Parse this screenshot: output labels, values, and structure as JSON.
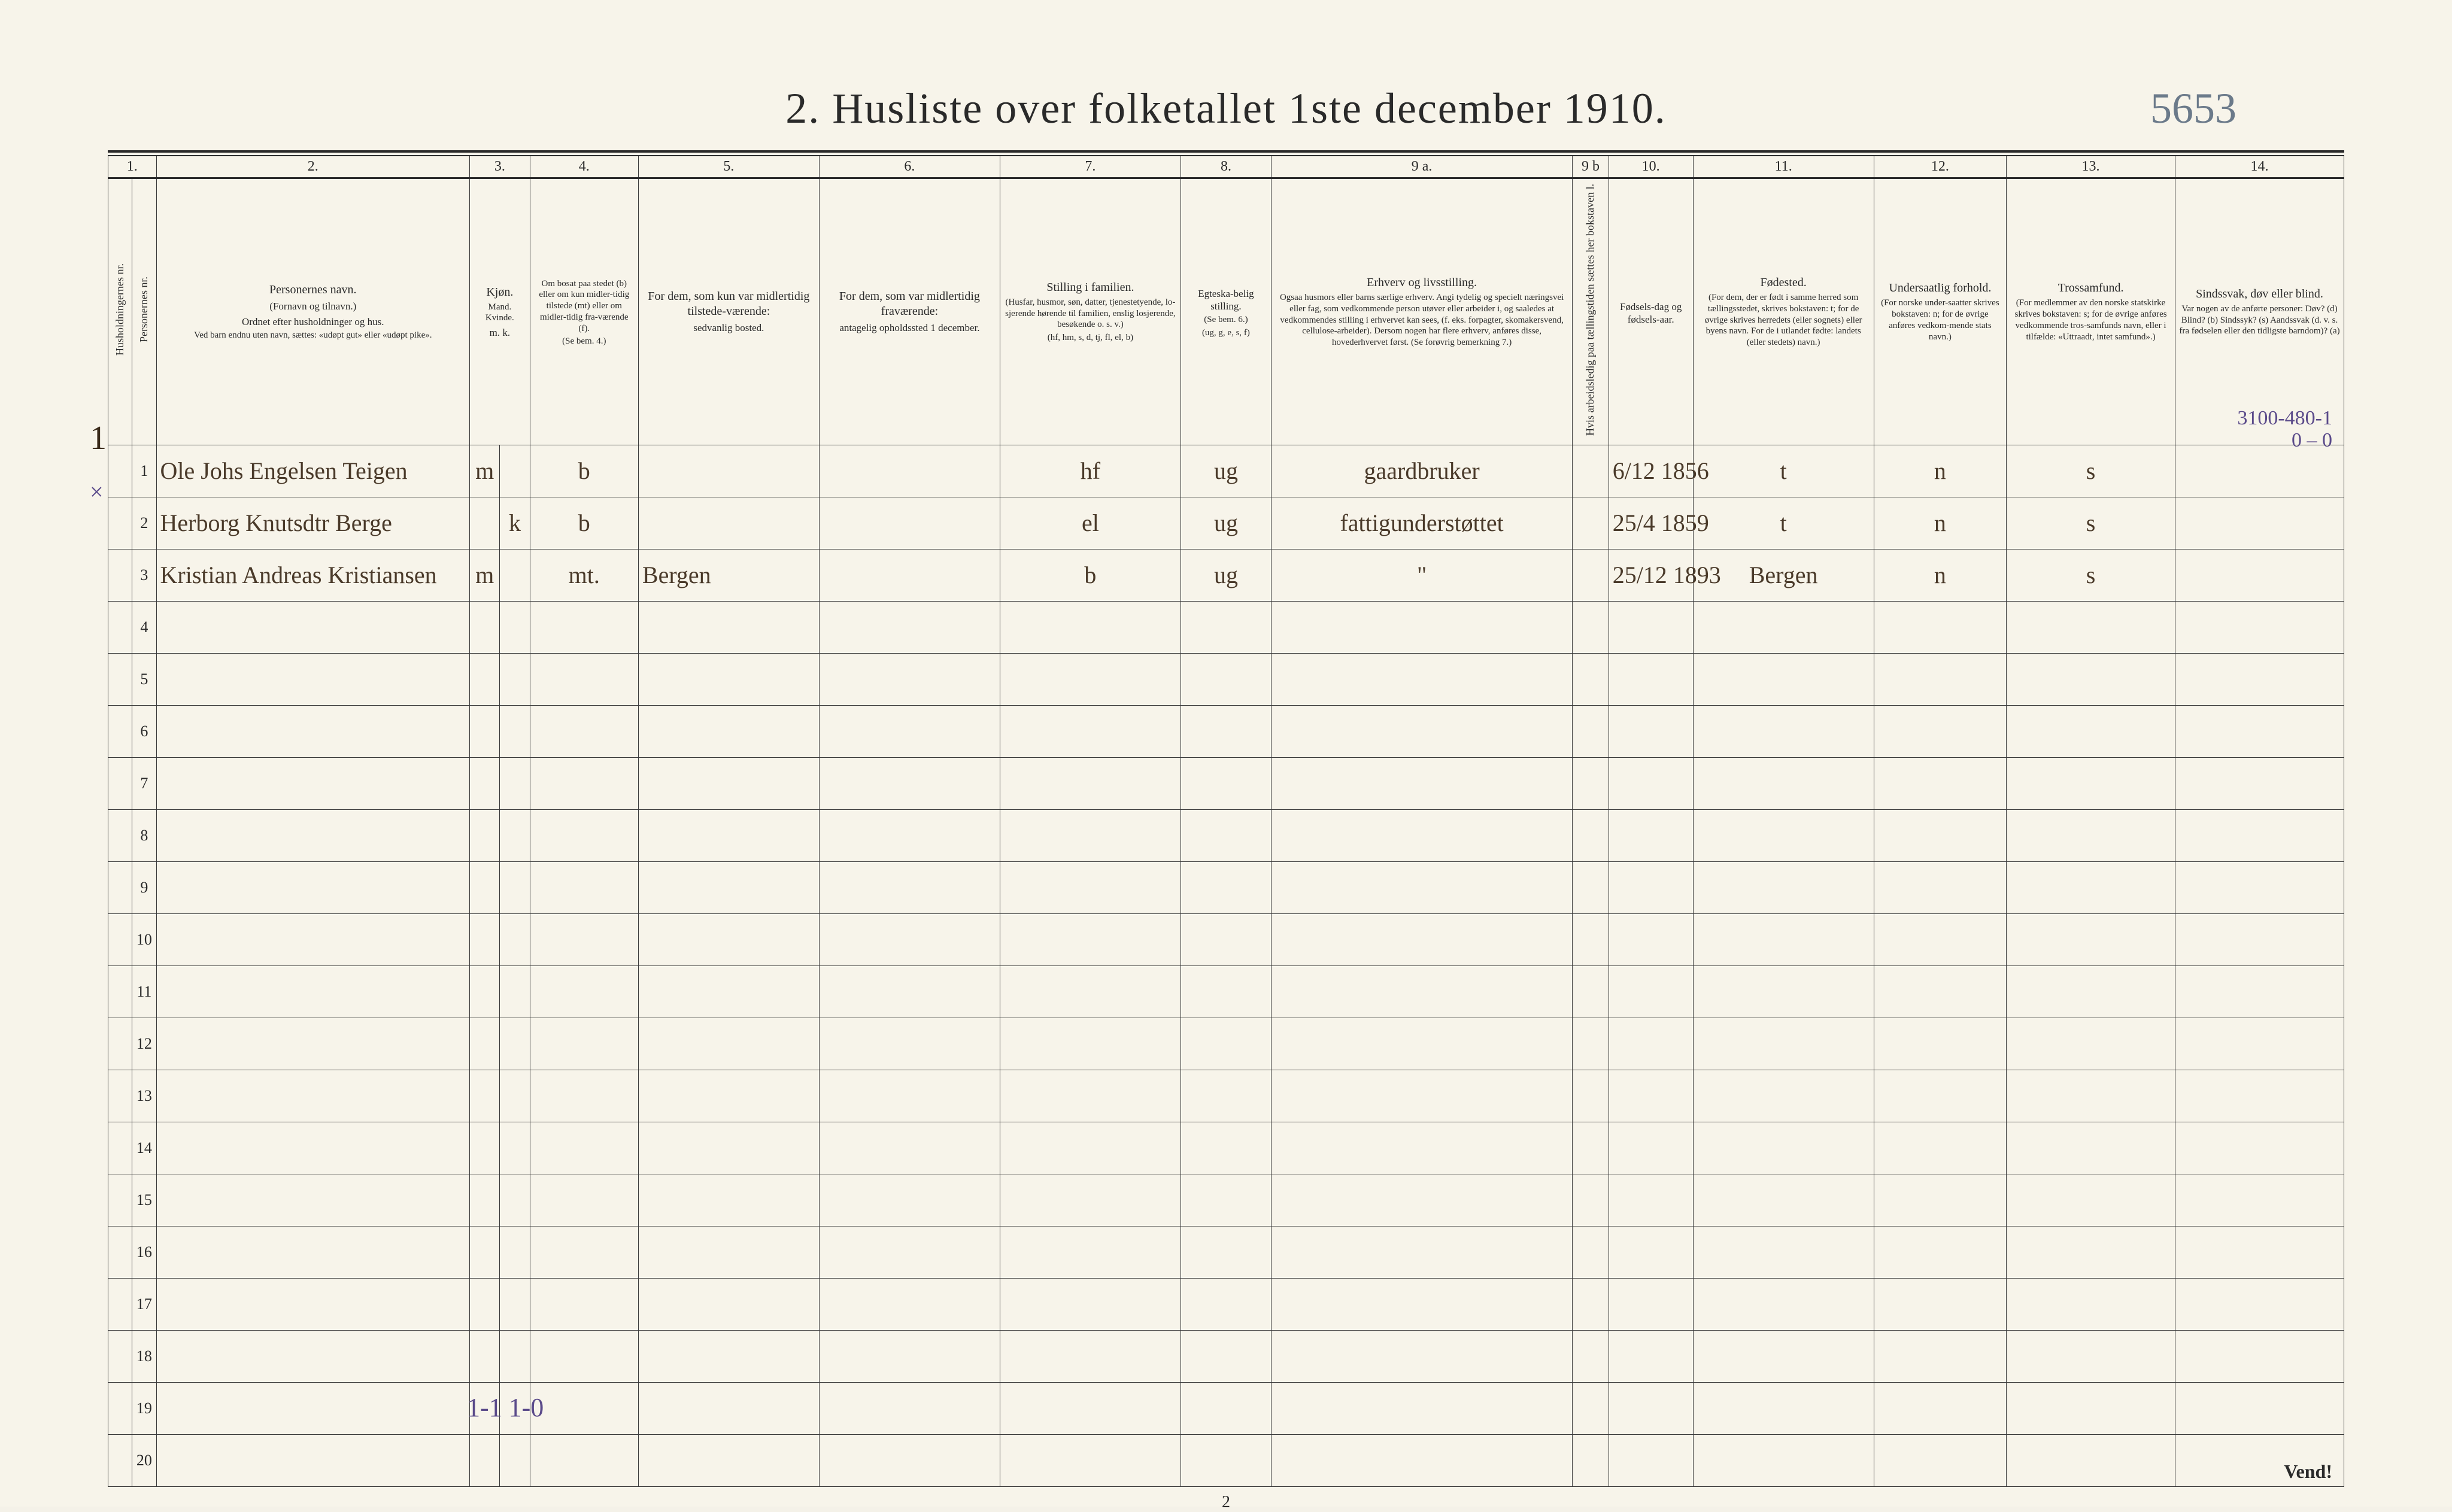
{
  "title": "2.  Husliste over folketallet 1ste december 1910.",
  "topright_handwritten": "5653",
  "side_annotation": {
    "line1": "3100-480-1",
    "line2": "0 – 0"
  },
  "footer_handwritten": "1-1    1-0",
  "page_number_print": "2",
  "vend_text": "Vend!",
  "household_margin_num": "1",
  "row2_margin_mark": "×",
  "colors": {
    "paper": "#f7f4ea",
    "ink": "#2a2a2a",
    "hand_brown": "#4a3a2a",
    "hand_purple": "#5a4a8a",
    "hand_grey": "#6b7a8a"
  },
  "columns": {
    "num1": "1.",
    "num2": "2.",
    "num3": "3.",
    "num4": "4.",
    "num5": "5.",
    "num6": "6.",
    "num7": "7.",
    "num8": "8.",
    "num9a": "9 a.",
    "num9b": "9 b",
    "num10": "10.",
    "num11": "11.",
    "num12": "12.",
    "num13": "13.",
    "num14": "14."
  },
  "headers": {
    "c1a": "Husholdningernes nr.",
    "c1b": "Personernes nr.",
    "c2_main": "Personernes navn.",
    "c2_sub1": "(Fornavn og tilnavn.)",
    "c2_sub2": "Ordnet efter husholdninger og hus.",
    "c2_sub3": "Ved barn endnu uten navn, sættes: «udøpt gut» eller «udøpt pike».",
    "c3_main": "Kjøn.",
    "c3_sub": "Mand.   Kvinde.",
    "c3_bottom": "m.  k.",
    "c4_main": "Om bosat paa stedet (b) eller om kun midler-tidig tilstede (mt) eller om midler-tidig fra-værende (f).",
    "c4_bottom": "(Se bem. 4.)",
    "c5_main": "For dem, som kun var midlertidig tilstede-værende:",
    "c5_sub": "sedvanlig bosted.",
    "c6_main": "For dem, som var midlertidig fraværende:",
    "c6_sub": "antagelig opholdssted 1 december.",
    "c7_main": "Stilling i familien.",
    "c7_sub1": "(Husfar, husmor, søn, datter, tjenestetyende, lo-sjerende hørende til familien, enslig losjerende, besøkende o. s. v.)",
    "c7_sub2": "(hf, hm, s, d, tj, fl, el, b)",
    "c8_main": "Egteska-belig stilling.",
    "c8_sub1": "(Se bem. 6.)",
    "c8_sub2": "(ug, g, e, s, f)",
    "c9_main": "Erhverv og livsstilling.",
    "c9_sub": "Ogsaa husmors eller barns særlige erhverv. Angi tydelig og specielt næringsvei eller fag, som vedkommende person utøver eller arbeider i, og saaledes at vedkommendes stilling i erhvervet kan sees, (f. eks. forpagter, skomakersvend, cellulose-arbeider). Dersom nogen har flere erhverv, anføres disse, hovederhvervet først. (Se forøvrig bemerkning 7.)",
    "c9b": "Hvis arbeidsledig paa tællingstiden sættes her bokstaven l.",
    "c10_main": "Fødsels-dag og fødsels-aar.",
    "c11_main": "Fødested.",
    "c11_sub": "(For dem, der er født i samme herred som tællingsstedet, skrives bokstaven: t; for de øvrige skrives herredets (eller sognets) eller byens navn. For de i utlandet fødte: landets (eller stedets) navn.)",
    "c12_main": "Undersaatlig forhold.",
    "c12_sub": "(For norske under-saatter skrives bokstaven: n; for de øvrige anføres vedkom-mende stats navn.)",
    "c13_main": "Trossamfund.",
    "c13_sub": "(For medlemmer av den norske statskirke skrives bokstaven: s; for de øvrige anføres vedkommende tros-samfunds navn, eller i tilfælde: «Uttraadt, intet samfund».)",
    "c14_main": "Sindssvak, døv eller blind.",
    "c14_sub": "Var nogen av de anførte personer: Døv? (d) Blind? (b) Sindssyk? (s) Aandssvak (d. v. s. fra fødselen eller den tidligste barndom)? (a)"
  },
  "rows": [
    {
      "n": "1",
      "name": "Ole Johs Engelsen Teigen",
      "sex_m": "m",
      "sex_k": "",
      "bosat": "b",
      "c5": "",
      "c6": "",
      "famstill": "hf",
      "egt": "ug",
      "erhverv": "gaardbruker",
      "c9b": "",
      "fdato": "6/12 1856",
      "fsted": "t",
      "unders": "n",
      "tros": "s",
      "c14": ""
    },
    {
      "n": "2",
      "name": "Herborg Knutsdtr Berge",
      "sex_m": "",
      "sex_k": "k",
      "bosat": "b",
      "c5": "",
      "c6": "",
      "famstill": "el",
      "egt": "ug",
      "erhverv": "fattigunderstøttet",
      "c9b": "",
      "fdato": "25/4 1859",
      "fsted": "t",
      "unders": "n",
      "tros": "s",
      "c14": ""
    },
    {
      "n": "3",
      "name": "Kristian Andreas Kristiansen",
      "sex_m": "m",
      "sex_k": "",
      "bosat": "mt.",
      "c5": "Bergen",
      "c6": "",
      "famstill": "b",
      "egt": "ug",
      "erhverv": "\"",
      "c9b": "",
      "fdato": "25/12 1893",
      "fsted": "Bergen",
      "unders": "n",
      "tros": "s",
      "c14": ""
    }
  ],
  "empty_row_count": 17,
  "row_numbers": [
    "1",
    "2",
    "3",
    "4",
    "5",
    "6",
    "7",
    "8",
    "9",
    "10",
    "11",
    "12",
    "13",
    "14",
    "15",
    "16",
    "17",
    "18",
    "19",
    "20"
  ]
}
